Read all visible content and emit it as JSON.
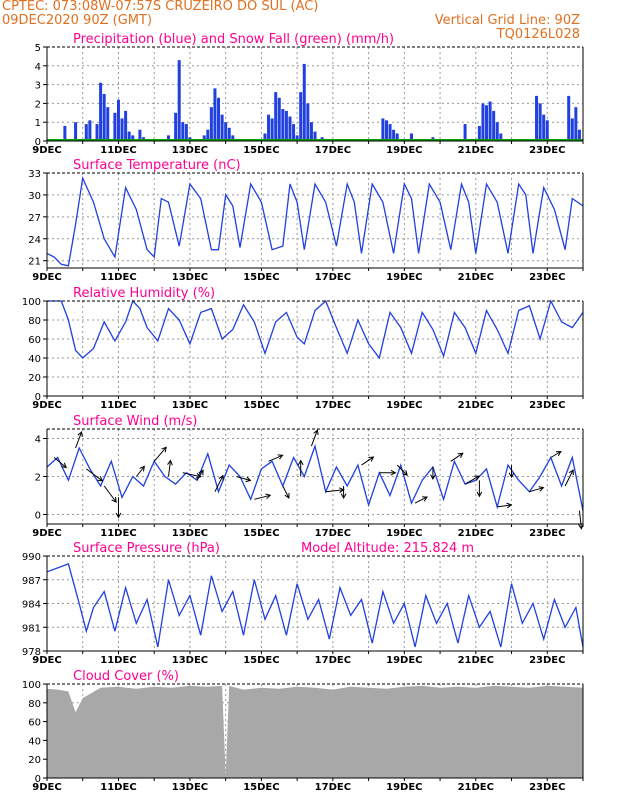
{
  "header": {
    "line1": "CPTEC:   073:08W-07:57S   CRUZEIRO DO SUL (AC)",
    "line2_left": "09DEC2020 90Z (GMT)",
    "line2_right": "Vertical Grid Line: 90Z",
    "line3_right": "TQ0126L028",
    "color": "#e07020"
  },
  "colors": {
    "title": "#ff0090",
    "series": "#2040e0",
    "snow": "#00a000",
    "cloud": "#a8a8a8",
    "grid": "#999999"
  },
  "x_ticks": [
    "9DEC",
    "11DEC",
    "13DEC",
    "15DEC",
    "17DEC",
    "19DEC",
    "21DEC",
    "23DEC"
  ],
  "chart_data": [
    {
      "type": "bar",
      "title": "Precipitation (blue) and Snow Fall (green) (mm/h)",
      "ylim": [
        0,
        5
      ],
      "yticks": [
        0,
        1,
        2,
        3,
        4,
        5
      ],
      "x_days": [
        0,
        15
      ],
      "series": [
        {
          "name": "Precipitation",
          "x": [
            0.5,
            0.8,
            1.1,
            1.2,
            1.4,
            1.5,
            1.6,
            1.7,
            1.9,
            2.0,
            2.1,
            2.2,
            2.3,
            2.4,
            2.6,
            2.7,
            2.8,
            3.4,
            3.6,
            3.7,
            3.8,
            3.9,
            4.0,
            4.1,
            4.4,
            4.5,
            4.6,
            4.7,
            4.8,
            4.9,
            5.0,
            5.1,
            5.2,
            6.1,
            6.2,
            6.3,
            6.4,
            6.5,
            6.6,
            6.7,
            6.8,
            6.9,
            7.0,
            7.1,
            7.2,
            7.3,
            7.4,
            7.5,
            7.7,
            9.4,
            9.5,
            9.6,
            9.7,
            9.8,
            9.9,
            10.2,
            10.8,
            11.7,
            12.1,
            12.2,
            12.3,
            12.4,
            12.5,
            12.6,
            12.7,
            13.7,
            13.8,
            13.9,
            14.0,
            14.6,
            14.7,
            14.8,
            14.9
          ],
          "values": [
            0.8,
            1.0,
            0.9,
            1.1,
            0.9,
            3.1,
            2.5,
            1.8,
            1.5,
            2.2,
            1.2,
            1.6,
            0.5,
            0.3,
            0.6,
            0.2,
            0.1,
            0.3,
            1.5,
            4.3,
            1.0,
            0.9,
            0.2,
            0.1,
            0.3,
            0.6,
            1.8,
            2.8,
            2.3,
            1.4,
            1.0,
            0.7,
            0.3,
            0.4,
            1.4,
            1.2,
            2.6,
            2.3,
            1.7,
            1.6,
            1.3,
            0.9,
            0.3,
            2.6,
            4.1,
            2.0,
            1.0,
            0.5,
            0.2,
            1.2,
            1.1,
            0.9,
            0.6,
            0.4,
            0.1,
            0.4,
            0.2,
            0.9,
            0.8,
            2.0,
            1.9,
            2.1,
            1.6,
            1.0,
            0.4,
            2.4,
            2.0,
            1.4,
            1.1,
            2.4,
            1.2,
            1.8,
            0.6
          ]
        },
        {
          "name": "Snow Fall",
          "x": [
            0,
            15
          ],
          "values": [
            0,
            0
          ]
        }
      ]
    },
    {
      "type": "line",
      "title": "Surface Temperature (nC)",
      "ylim": [
        20,
        33
      ],
      "yticks": [
        21,
        24,
        27,
        30,
        33
      ],
      "x": [
        0,
        0.2,
        0.4,
        0.6,
        0.8,
        1.0,
        1.3,
        1.6,
        1.9,
        2.2,
        2.5,
        2.8,
        3.0,
        3.2,
        3.4,
        3.7,
        4.0,
        4.3,
        4.6,
        4.8,
        5.0,
        5.2,
        5.4,
        5.7,
        6.0,
        6.3,
        6.6,
        6.8,
        7.0,
        7.2,
        7.5,
        7.8,
        8.1,
        8.4,
        8.6,
        8.8,
        9.1,
        9.4,
        9.7,
        10.0,
        10.2,
        10.4,
        10.7,
        11.0,
        11.3,
        11.6,
        11.8,
        12.0,
        12.3,
        12.6,
        12.9,
        13.2,
        13.4,
        13.6,
        13.9,
        14.2,
        14.5,
        14.7,
        15.0
      ],
      "values": [
        22.0,
        21.5,
        20.5,
        20.3,
        26.0,
        32.3,
        29.0,
        24.0,
        21.5,
        31.0,
        28.0,
        22.5,
        21.5,
        29.5,
        29.0,
        23.0,
        31.5,
        29.5,
        22.5,
        22.5,
        30.0,
        28.5,
        22.8,
        31.5,
        29.0,
        22.5,
        23.0,
        31.5,
        29.0,
        22.5,
        31.5,
        29.0,
        23.0,
        31.5,
        29.0,
        22.0,
        31.5,
        29.0,
        22.0,
        31.5,
        29.5,
        22.0,
        31.5,
        29.0,
        22.5,
        31.5,
        29.0,
        22.0,
        31.5,
        29.0,
        22.0,
        31.5,
        30.0,
        22.0,
        31.0,
        28.0,
        22.5,
        29.5,
        28.5
      ]
    },
    {
      "type": "line",
      "title": "Relative Humidity (%)",
      "ylim": [
        0,
        100
      ],
      "yticks": [
        0,
        20,
        40,
        60,
        80,
        100
      ],
      "x": [
        0,
        0.4,
        0.6,
        0.8,
        1.0,
        1.3,
        1.6,
        1.9,
        2.2,
        2.4,
        2.6,
        2.8,
        3.1,
        3.4,
        3.7,
        4.0,
        4.3,
        4.6,
        4.9,
        5.2,
        5.5,
        5.8,
        6.1,
        6.4,
        6.7,
        7.0,
        7.2,
        7.5,
        7.8,
        8.1,
        8.4,
        8.7,
        9.0,
        9.3,
        9.6,
        9.9,
        10.2,
        10.5,
        10.8,
        11.1,
        11.4,
        11.7,
        12.0,
        12.3,
        12.6,
        12.9,
        13.2,
        13.5,
        13.8,
        14.1,
        14.4,
        14.7,
        15.0
      ],
      "values": [
        100,
        100,
        80,
        48,
        40,
        50,
        78,
        58,
        78,
        100,
        92,
        72,
        58,
        92,
        80,
        55,
        88,
        92,
        60,
        70,
        96,
        78,
        45,
        78,
        88,
        62,
        55,
        90,
        100,
        72,
        45,
        80,
        55,
        40,
        88,
        72,
        45,
        88,
        70,
        42,
        88,
        72,
        45,
        90,
        70,
        45,
        90,
        95,
        60,
        100,
        78,
        72,
        88
      ]
    },
    {
      "type": "line",
      "title": "Surface Wind (m/s)",
      "ylim": [
        -0.5,
        4.5
      ],
      "yticks": [
        0,
        2,
        4
      ],
      "x": [
        0,
        0.3,
        0.6,
        0.9,
        1.2,
        1.5,
        1.8,
        2.1,
        2.4,
        2.7,
        3.0,
        3.3,
        3.6,
        3.9,
        4.2,
        4.5,
        4.8,
        5.1,
        5.4,
        5.7,
        6.0,
        6.3,
        6.6,
        6.9,
        7.2,
        7.5,
        7.8,
        8.1,
        8.4,
        8.7,
        9.0,
        9.3,
        9.6,
        9.9,
        10.2,
        10.5,
        10.8,
        11.1,
        11.4,
        11.7,
        12.0,
        12.3,
        12.6,
        12.9,
        13.2,
        13.5,
        13.8,
        14.1,
        14.4,
        14.7,
        15.0
      ],
      "values": [
        2.5,
        3.0,
        1.8,
        3.5,
        2.4,
        1.5,
        2.8,
        0.9,
        2.0,
        1.5,
        2.8,
        2.0,
        1.6,
        2.2,
        1.8,
        3.2,
        1.2,
        2.6,
        2.0,
        0.8,
        2.4,
        2.8,
        1.5,
        3.0,
        2.0,
        3.6,
        1.2,
        2.5,
        1.5,
        2.6,
        0.5,
        2.2,
        1.0,
        2.6,
        0.6,
        1.8,
        2.5,
        0.8,
        2.8,
        1.6,
        1.8,
        2.4,
        0.4,
        2.6,
        1.8,
        1.2,
        2.0,
        3.0,
        1.5,
        3.0,
        0.2
      ],
      "arrows": [
        {
          "x": 0.2,
          "u": 0.6,
          "v": -0.5
        },
        {
          "x": 0.8,
          "u": 0.3,
          "v": 0.8
        },
        {
          "x": 1.1,
          "u": 0.8,
          "v": -0.6
        },
        {
          "x": 1.6,
          "u": 0.6,
          "v": -0.8
        },
        {
          "x": 2.0,
          "u": 0.0,
          "v": -1.0
        },
        {
          "x": 2.5,
          "u": 0.4,
          "v": 0.5
        },
        {
          "x": 3.0,
          "u": 0.6,
          "v": 0.7
        },
        {
          "x": 3.4,
          "u": 0.1,
          "v": 0.8
        },
        {
          "x": 3.8,
          "u": 0.9,
          "v": -0.2
        },
        {
          "x": 4.2,
          "u": 0.3,
          "v": 0.5
        },
        {
          "x": 4.7,
          "u": 0.4,
          "v": 0.8
        },
        {
          "x": 5.3,
          "u": 0.7,
          "v": -0.2
        },
        {
          "x": 5.8,
          "u": 0.8,
          "v": 0.2
        },
        {
          "x": 6.2,
          "u": 0.7,
          "v": 0.3
        },
        {
          "x": 6.6,
          "u": 0.3,
          "v": -0.6
        },
        {
          "x": 7.1,
          "u": 0.0,
          "v": 0.8
        },
        {
          "x": 7.4,
          "u": 0.3,
          "v": 0.8
        },
        {
          "x": 7.8,
          "u": 0.9,
          "v": 0.1
        },
        {
          "x": 8.3,
          "u": 0.0,
          "v": -0.6
        },
        {
          "x": 8.8,
          "u": 0.6,
          "v": 0.4
        },
        {
          "x": 9.3,
          "u": 0.8,
          "v": 0.0
        },
        {
          "x": 9.8,
          "u": 0.5,
          "v": -0.5
        },
        {
          "x": 10.3,
          "u": 0.6,
          "v": 0.3
        },
        {
          "x": 10.8,
          "u": 0.0,
          "v": -0.6
        },
        {
          "x": 11.3,
          "u": 0.6,
          "v": 0.4
        },
        {
          "x": 11.7,
          "u": 0.7,
          "v": 0.4
        },
        {
          "x": 12.1,
          "u": 0.0,
          "v": -0.8
        },
        {
          "x": 12.6,
          "u": 0.7,
          "v": 0.1
        },
        {
          "x": 13.0,
          "u": 0.0,
          "v": -0.6
        },
        {
          "x": 13.5,
          "u": 0.7,
          "v": 0.2
        },
        {
          "x": 14.1,
          "u": 0.5,
          "v": 0.3
        },
        {
          "x": 14.5,
          "u": 0.4,
          "v": 0.8
        },
        {
          "x": 14.9,
          "u": 0.1,
          "v": -0.9
        }
      ]
    },
    {
      "type": "line",
      "title": "Surface Pressure (hPa)",
      "annotation": "Model Altitude: 215.824 m",
      "ylim": [
        978,
        990
      ],
      "yticks": [
        978,
        981,
        984,
        987,
        990
      ],
      "x": [
        0,
        0.3,
        0.6,
        0.9,
        1.1,
        1.3,
        1.6,
        1.9,
        2.2,
        2.5,
        2.8,
        3.1,
        3.4,
        3.7,
        4.0,
        4.3,
        4.6,
        4.9,
        5.2,
        5.5,
        5.8,
        6.1,
        6.4,
        6.7,
        7.0,
        7.3,
        7.6,
        7.9,
        8.2,
        8.5,
        8.8,
        9.1,
        9.4,
        9.7,
        10.0,
        10.3,
        10.6,
        10.9,
        11.2,
        11.5,
        11.8,
        12.1,
        12.4,
        12.7,
        13.0,
        13.3,
        13.6,
        13.9,
        14.2,
        14.5,
        14.8,
        15.0
      ],
      "values": [
        988.0,
        988.5,
        989.0,
        984.0,
        980.5,
        983.5,
        985.5,
        980.5,
        986.0,
        981.5,
        984.5,
        978.5,
        987.0,
        982.5,
        985.0,
        980.0,
        987.5,
        983.0,
        985.5,
        980.0,
        987.0,
        982.0,
        985.0,
        980.0,
        986.5,
        982.0,
        984.5,
        979.5,
        986.0,
        982.5,
        984.5,
        979.0,
        985.5,
        981.5,
        984.0,
        978.5,
        985.0,
        981.5,
        984.0,
        979.0,
        985.0,
        981.0,
        983.0,
        978.5,
        986.5,
        981.5,
        984.0,
        979.5,
        984.5,
        981.0,
        983.5,
        978.5
      ]
    },
    {
      "type": "area",
      "title": "Cloud Cover (%)",
      "ylim": [
        0,
        100
      ],
      "yticks": [
        0,
        20,
        40,
        60,
        80,
        100
      ],
      "x": [
        0,
        0.3,
        0.6,
        0.8,
        1.0,
        1.5,
        2.0,
        2.5,
        3.0,
        3.5,
        4.0,
        4.5,
        4.9,
        5.0,
        5.1,
        5.5,
        6.0,
        6.5,
        7.0,
        7.5,
        8.0,
        8.5,
        9.0,
        9.5,
        10.0,
        10.5,
        11.0,
        11.5,
        12.0,
        12.5,
        13.0,
        13.5,
        14.0,
        14.5,
        15.0
      ],
      "values": [
        95,
        94,
        92,
        70,
        85,
        96,
        97,
        95,
        97,
        96,
        98,
        97,
        98,
        2,
        98,
        94,
        96,
        95,
        97,
        96,
        94,
        97,
        96,
        95,
        97,
        98,
        96,
        97,
        96,
        98,
        97,
        96,
        98,
        97,
        96
      ]
    }
  ]
}
